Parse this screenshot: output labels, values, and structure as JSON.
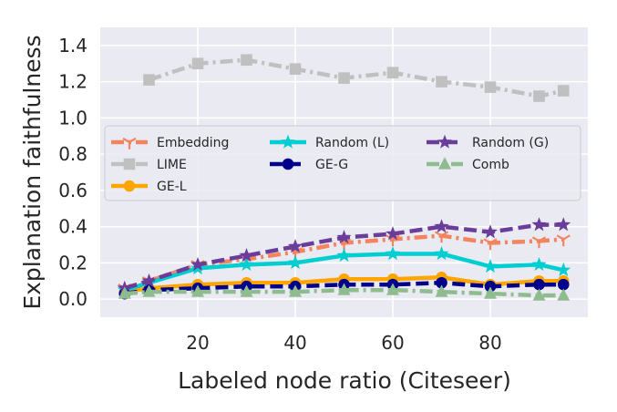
{
  "chart_data": {
    "type": "line",
    "title": "",
    "xlabel": "Labeled node ratio (Citeseer)",
    "ylabel": "Explanation faithfulness",
    "xlim": [
      0,
      100
    ],
    "ylim": [
      -0.1,
      1.5
    ],
    "xticks": [
      "20",
      "40",
      "60",
      "80"
    ],
    "yticks": [
      "0.0",
      "0.2",
      "0.4",
      "0.6",
      "0.8",
      "1.0",
      "1.2",
      "1.4"
    ],
    "grid": true,
    "legend_position": "center",
    "x": [
      5,
      10,
      20,
      30,
      40,
      50,
      60,
      70,
      80,
      90,
      95
    ],
    "series": [
      {
        "name": "Embedding",
        "color": "#f4845f",
        "dash": "dashdot",
        "marker": "tri-down",
        "values": [
          0.06,
          0.1,
          0.19,
          0.22,
          0.26,
          0.31,
          0.33,
          0.35,
          0.31,
          0.32,
          0.33
        ]
      },
      {
        "name": "LIME",
        "color": "#c0c0c0",
        "dash": "dashdot",
        "marker": "square",
        "values": [
          null,
          1.21,
          1.3,
          1.32,
          1.27,
          1.22,
          1.25,
          1.2,
          1.17,
          1.12,
          1.15
        ]
      },
      {
        "name": "GE-L",
        "color": "#ffa500",
        "dash": "solid",
        "marker": "circle",
        "values": [
          0.04,
          0.06,
          0.08,
          0.09,
          0.09,
          0.11,
          0.11,
          0.12,
          0.08,
          0.1,
          0.1
        ]
      },
      {
        "name": "Random (L)",
        "color": "#00ced1",
        "dash": "solid",
        "marker": "star",
        "values": [
          0.05,
          0.09,
          0.17,
          0.19,
          0.2,
          0.24,
          0.25,
          0.25,
          0.18,
          0.19,
          0.16
        ]
      },
      {
        "name": "GE-G",
        "color": "#00008b",
        "dash": "dashed",
        "marker": "circle",
        "values": [
          0.03,
          0.05,
          0.06,
          0.07,
          0.07,
          0.08,
          0.08,
          0.09,
          0.07,
          0.08,
          0.08
        ]
      },
      {
        "name": "Random (G)",
        "color": "#6a3d9a",
        "dash": "dashed",
        "marker": "star",
        "values": [
          0.06,
          0.1,
          0.19,
          0.24,
          0.29,
          0.34,
          0.36,
          0.4,
          0.37,
          0.41,
          0.41
        ]
      },
      {
        "name": "Comb",
        "color": "#8fbc8f",
        "dash": "dashdot",
        "marker": "triangle",
        "values": [
          0.03,
          0.04,
          0.04,
          0.04,
          0.04,
          0.05,
          0.05,
          0.04,
          0.03,
          0.02,
          0.02
        ]
      }
    ]
  }
}
